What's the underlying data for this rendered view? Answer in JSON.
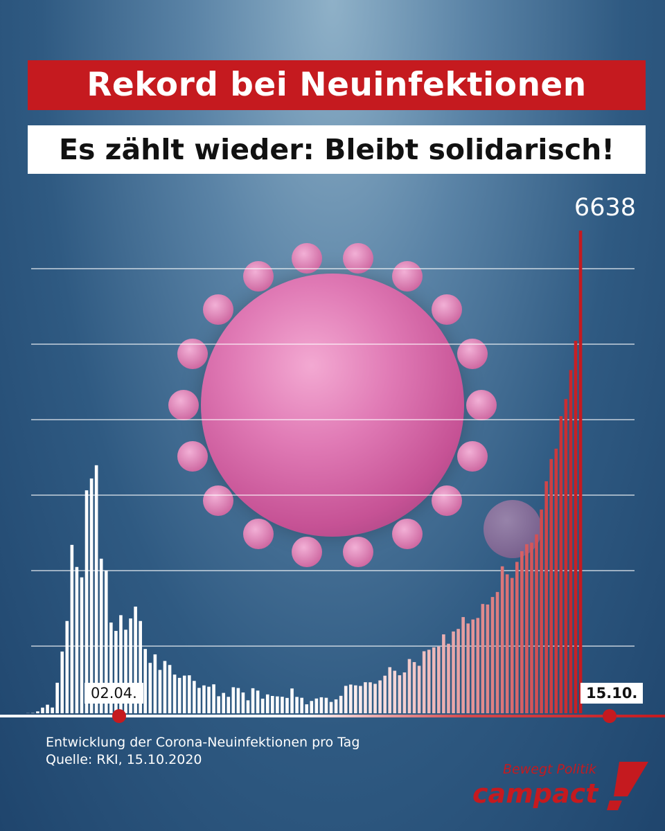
{
  "header": {
    "title": "Rekord bei Neuinfektionen",
    "subtitle": "Es zählt wieder: Bleibt solidarisch!"
  },
  "chart_data": {
    "type": "bar",
    "title": "",
    "xlabel": "",
    "ylabel": "",
    "highlight_labels": {
      "peak_value": "6638",
      "date_start": "02.04.",
      "date_end": "15.10."
    },
    "caption": [
      "Entwicklung der Corona-Neuinfektionen pro Tag",
      "Quelle: RKI, 15.10.2020"
    ],
    "ylim": [
      0,
      6638
    ],
    "grid": true,
    "colors": {
      "early": "#ffffff",
      "late": "#c51a1f"
    },
    "values": [
      2,
      4,
      26,
      78,
      118,
      79,
      420,
      849,
      1269,
      2316,
      2012,
      1869,
      3066,
      3229,
      3411,
      2126,
      1962,
      1248,
      1133,
      1349,
      1149,
      1304,
      1467,
      1269,
      884,
      693,
      810,
      596,
      719,
      664,
      532,
      487,
      518,
      522,
      445,
      349,
      383,
      365,
      398,
      234,
      280,
      226,
      358,
      347,
      286,
      178,
      344,
      312,
      201,
      259,
      238,
      232,
      227,
      211,
      341,
      225,
      213,
      123,
      169,
      203,
      220,
      213,
      156,
      191,
      240,
      377,
      395,
      384,
      376,
      427,
      426,
      405,
      452,
      517,
      634,
      585,
      523,
      562,
      746,
      704,
      653,
      853,
      874,
      907,
      919,
      1085,
      956,
      1125,
      1160,
      1323,
      1235,
      1290,
      1311,
      1503,
      1496,
      1599,
      1668,
      2021,
      1911,
      1861,
      2082,
      2229,
      2325,
      2347,
      2460,
      2802,
      3191,
      3497,
      3639,
      4086,
      4322,
      4721,
      5123,
      6638
    ]
  },
  "brand": {
    "tagline": "Bewegt Politik",
    "name": "campact"
  }
}
